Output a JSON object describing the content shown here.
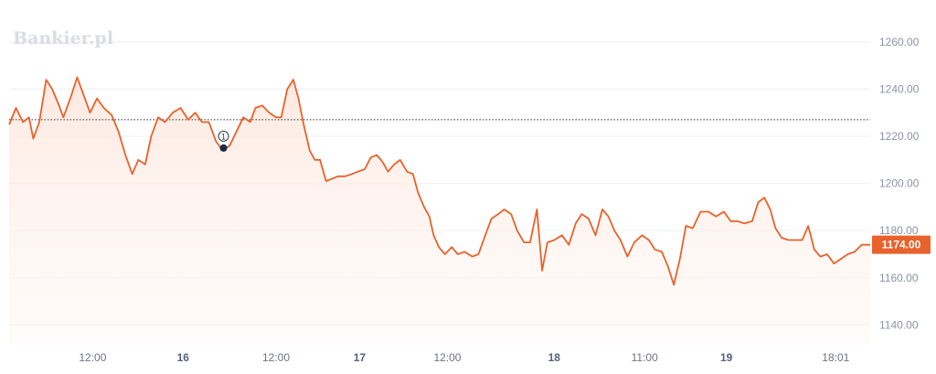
{
  "watermark": "Bankier.pl",
  "colors": {
    "line": "#e8622c",
    "area_top": "#fde7dd",
    "grid": "#eef0f3",
    "reference_line": "#2a2f3a",
    "marker": "#1e2a44",
    "price_tag": "#e8622c"
  },
  "chart_data": {
    "type": "area",
    "title": "",
    "xlabel": "",
    "ylabel": "",
    "ylim": [
      1132,
      1270
    ],
    "y_ticks": [
      1140,
      1160,
      1180,
      1200,
      1220,
      1240,
      1260
    ],
    "y_tick_labels": [
      "1140.00",
      "1160.00",
      "1180.00",
      "1200.00",
      "1220.00",
      "1240.00",
      "1260.00"
    ],
    "x_range": [
      0,
      100
    ],
    "x_ticks": [
      {
        "x": 9.7,
        "label": "12:00",
        "bold": false
      },
      {
        "x": 20.2,
        "label": "16",
        "bold": true
      },
      {
        "x": 31.0,
        "label": "12:00",
        "bold": false
      },
      {
        "x": 40.7,
        "label": "17",
        "bold": true
      },
      {
        "x": 50.9,
        "label": "12:00",
        "bold": false
      },
      {
        "x": 63.3,
        "label": "18",
        "bold": true
      },
      {
        "x": 73.8,
        "label": "11:00",
        "bold": false
      },
      {
        "x": 83.3,
        "label": "19",
        "bold": true
      },
      {
        "x": 96.0,
        "label": "18:01",
        "bold": false
      }
    ],
    "reference_value": 1227,
    "last_price": 1174,
    "last_price_label": "1174.00",
    "marker": {
      "x": 24.9,
      "y": 1215,
      "label": "1"
    },
    "grid": true,
    "points": [
      [
        0,
        1225
      ],
      [
        0.8,
        1232
      ],
      [
        1.6,
        1226
      ],
      [
        2.3,
        1228
      ],
      [
        2.8,
        1219
      ],
      [
        3.5,
        1226
      ],
      [
        4.3,
        1244
      ],
      [
        5.0,
        1240
      ],
      [
        5.8,
        1233
      ],
      [
        6.3,
        1228
      ],
      [
        7.2,
        1237
      ],
      [
        7.9,
        1245
      ],
      [
        8.6,
        1238
      ],
      [
        9.4,
        1230
      ],
      [
        10.2,
        1236
      ],
      [
        11.0,
        1232
      ],
      [
        11.9,
        1229
      ],
      [
        12.7,
        1222
      ],
      [
        13.5,
        1212
      ],
      [
        14.3,
        1204
      ],
      [
        15.0,
        1210
      ],
      [
        15.8,
        1208
      ],
      [
        16.5,
        1220
      ],
      [
        17.3,
        1228
      ],
      [
        18.1,
        1226
      ],
      [
        19.0,
        1230
      ],
      [
        19.9,
        1232
      ],
      [
        20.8,
        1227
      ],
      [
        21.6,
        1230
      ],
      [
        22.4,
        1226
      ],
      [
        23.2,
        1226
      ],
      [
        24.0,
        1218
      ],
      [
        24.8,
        1214
      ],
      [
        25.6,
        1216
      ],
      [
        26.4,
        1222
      ],
      [
        27.2,
        1228
      ],
      [
        28.0,
        1226
      ],
      [
        28.6,
        1232
      ],
      [
        29.4,
        1233
      ],
      [
        30.2,
        1230
      ],
      [
        31.0,
        1228
      ],
      [
        31.6,
        1228
      ],
      [
        32.3,
        1240
      ],
      [
        33.0,
        1244
      ],
      [
        33.6,
        1236
      ],
      [
        34.2,
        1225
      ],
      [
        34.9,
        1214
      ],
      [
        35.5,
        1210
      ],
      [
        36.1,
        1210
      ],
      [
        36.8,
        1201
      ],
      [
        37.5,
        1202
      ],
      [
        38.2,
        1203
      ],
      [
        39.0,
        1203
      ],
      [
        39.8,
        1204
      ],
      [
        40.5,
        1205
      ],
      [
        41.3,
        1206
      ],
      [
        42.0,
        1211
      ],
      [
        42.7,
        1212
      ],
      [
        43.4,
        1209
      ],
      [
        44.0,
        1205
      ],
      [
        44.7,
        1208
      ],
      [
        45.4,
        1210
      ],
      [
        46.2,
        1205
      ],
      [
        46.9,
        1204
      ],
      [
        47.5,
        1196
      ],
      [
        48.2,
        1190
      ],
      [
        48.8,
        1186
      ],
      [
        49.3,
        1178
      ],
      [
        49.9,
        1173
      ],
      [
        50.6,
        1170
      ],
      [
        51.4,
        1173
      ],
      [
        52.1,
        1170
      ],
      [
        52.9,
        1171
      ],
      [
        53.8,
        1169
      ],
      [
        54.5,
        1170
      ],
      [
        55.3,
        1178
      ],
      [
        56.0,
        1185
      ],
      [
        56.8,
        1187
      ],
      [
        57.5,
        1189
      ],
      [
        58.3,
        1187
      ],
      [
        59.0,
        1180
      ],
      [
        59.8,
        1175
      ],
      [
        60.5,
        1175
      ],
      [
        61.3,
        1189
      ],
      [
        61.9,
        1163
      ],
      [
        62.5,
        1175
      ],
      [
        63.3,
        1176
      ],
      [
        64.2,
        1178
      ],
      [
        65.0,
        1174
      ],
      [
        65.8,
        1183
      ],
      [
        66.5,
        1187
      ],
      [
        67.3,
        1185
      ],
      [
        68.1,
        1178
      ],
      [
        68.9,
        1189
      ],
      [
        69.6,
        1186
      ],
      [
        70.3,
        1180
      ],
      [
        71.0,
        1176
      ],
      [
        71.8,
        1169
      ],
      [
        72.6,
        1175
      ],
      [
        73.5,
        1178
      ],
      [
        74.3,
        1176
      ],
      [
        75.0,
        1172
      ],
      [
        75.8,
        1171
      ],
      [
        76.5,
        1165
      ],
      [
        77.2,
        1157
      ],
      [
        77.9,
        1168
      ],
      [
        78.6,
        1182
      ],
      [
        79.4,
        1181
      ],
      [
        80.3,
        1188
      ],
      [
        81.2,
        1188
      ],
      [
        82.1,
        1186
      ],
      [
        83.0,
        1188
      ],
      [
        83.8,
        1184
      ],
      [
        84.6,
        1184
      ],
      [
        85.4,
        1183
      ],
      [
        86.3,
        1184
      ],
      [
        87.0,
        1192
      ],
      [
        87.7,
        1194
      ],
      [
        88.4,
        1189
      ],
      [
        89.0,
        1181
      ],
      [
        89.7,
        1177
      ],
      [
        90.5,
        1176
      ],
      [
        91.3,
        1176
      ],
      [
        92.1,
        1176
      ],
      [
        92.8,
        1182
      ],
      [
        93.5,
        1172
      ],
      [
        94.2,
        1169
      ],
      [
        95.0,
        1170
      ],
      [
        95.8,
        1166
      ],
      [
        96.6,
        1168
      ],
      [
        97.4,
        1170
      ],
      [
        98.2,
        1171
      ],
      [
        99.0,
        1174
      ],
      [
        100,
        1174
      ]
    ]
  }
}
